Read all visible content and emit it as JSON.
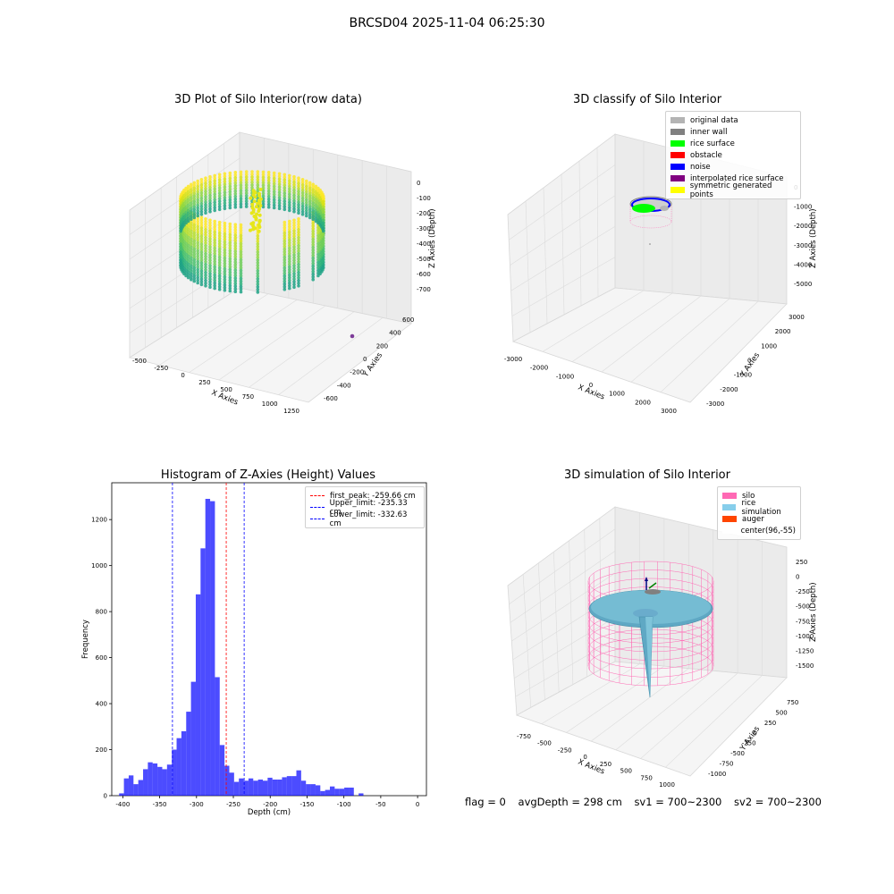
{
  "figure": {
    "suptitle": "BRCSD04 2025-11-04 06:25:30",
    "status": {
      "flag": "flag = 0",
      "avg_depth": "avgDepth = 298 cm",
      "sv1": "sv1 = 700~2300",
      "sv2": "sv2 = 700~2300"
    }
  },
  "panels": {
    "raw": {
      "title": "3D Plot of Silo Interior(row data)",
      "xlabel": "X Axies",
      "ylabel": "Y Axies",
      "zlabel": "Z Axies (Depth)",
      "xticks": [
        "-500",
        "-250",
        "0",
        "250",
        "500",
        "750",
        "1000",
        "1250"
      ],
      "yticks": [
        "-600",
        "-400",
        "-200",
        "0",
        "200",
        "400",
        "600"
      ],
      "zticks": [
        "0",
        "-100",
        "-200",
        "-300",
        "-400",
        "-500",
        "-600",
        "-700"
      ]
    },
    "classify": {
      "title": "3D classify of Silo Interior",
      "xlabel": "X Axies",
      "ylabel": "Y Axies",
      "zlabel": "Z Axies (Depth)",
      "xticks": [
        "-3000",
        "-2000",
        "-1000",
        "0",
        "1000",
        "2000",
        "3000"
      ],
      "yticks": [
        "-3000",
        "-2000",
        "-1000",
        "0",
        "1000",
        "2000",
        "3000"
      ],
      "zticks": [
        "0",
        "-1000",
        "-2000",
        "-3000",
        "-4000",
        "-5000"
      ],
      "legend": [
        {
          "label": "original data",
          "color": "#b4b4b4"
        },
        {
          "label": "inner wall",
          "color": "#808080"
        },
        {
          "label": "rice surface",
          "color": "#00ff00"
        },
        {
          "label": "obstacle",
          "color": "#ff0000"
        },
        {
          "label": "noise",
          "color": "#0000ff"
        },
        {
          "label": "interpolated rice surface",
          "color": "#800080"
        },
        {
          "label": "symmetric generated points",
          "color": "#ffff00"
        }
      ]
    },
    "simulation": {
      "title": "3D simulation of Silo Interior",
      "xlabel": "X Axies",
      "ylabel": "Y Axies",
      "zlabel": "Z Axies (Depth)",
      "xticks": [
        "-750",
        "-500",
        "-250",
        "0",
        "250",
        "500",
        "750",
        "1000"
      ],
      "yticks": [
        "-1000",
        "-750",
        "-500",
        "-250",
        "0",
        "250",
        "500",
        "750"
      ],
      "zticks": [
        "250",
        "0",
        "-250",
        "-500",
        "-750",
        "-1000",
        "-1250",
        "-1500"
      ],
      "legend": [
        {
          "label": "silo",
          "color": "#ff69b4"
        },
        {
          "label": "rice simulation",
          "color": "#87ceeb"
        },
        {
          "label": "auger",
          "color": "#ff4500"
        },
        {
          "label": "center(96,-55)",
          "color": "#ffffff"
        }
      ]
    }
  },
  "chart_data": {
    "type": "bar",
    "title": "Histogram of Z-Axies (Height) Values",
    "xlabel": "Depth (cm)",
    "ylabel": "Frequency",
    "xlim": [
      -415,
      12
    ],
    "ylim": [
      0,
      1360
    ],
    "xticks": [
      -400,
      -350,
      -300,
      -250,
      -200,
      -150,
      -100,
      -50,
      0
    ],
    "yticks": [
      0,
      200,
      400,
      600,
      800,
      1000,
      1200
    ],
    "bar_color": "#0000ff",
    "bin_edges_start": -405,
    "bin_width": 6.5,
    "values": [
      10,
      75,
      88,
      50,
      68,
      115,
      145,
      140,
      125,
      115,
      135,
      200,
      250,
      280,
      365,
      495,
      875,
      1075,
      1290,
      1280,
      515,
      220,
      130,
      100,
      60,
      75,
      65,
      75,
      65,
      70,
      65,
      78,
      70,
      70,
      80,
      85,
      85,
      110,
      65,
      50,
      50,
      45,
      20,
      25,
      40,
      30,
      30,
      35,
      35,
      0,
      10
    ],
    "vlines": [
      {
        "label": "first_peak: -259.66 cm",
        "x": -259.66,
        "color": "#ff0000"
      },
      {
        "label": "Upper_limit: -235.33 cm",
        "x": -235.33,
        "color": "#0000ff"
      },
      {
        "label": "Lower_limit: -332.63 cm",
        "x": -332.63,
        "color": "#0000ff"
      }
    ]
  }
}
